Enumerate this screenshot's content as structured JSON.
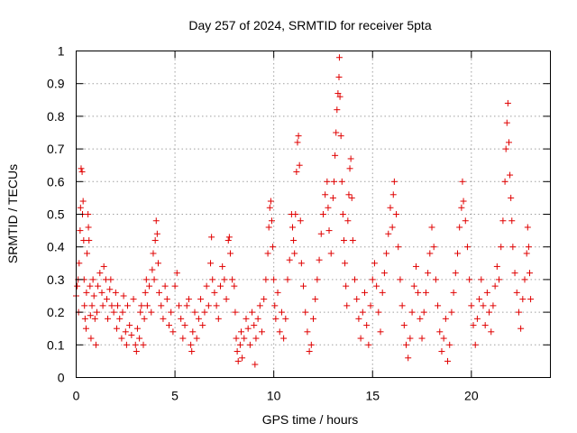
{
  "chart_data": {
    "type": "scatter",
    "title": "Day 257 of 2024, SRMTID for receiver 5pta",
    "xlabel": "GPS time / hours",
    "ylabel": "SRMTID / TECUs",
    "xlim": [
      0,
      24
    ],
    "ylim": [
      0,
      1
    ],
    "xticks": [
      0,
      5,
      10,
      15,
      20
    ],
    "yticks": [
      0,
      0.1,
      0.2,
      0.3,
      0.4,
      0.5,
      0.6,
      0.7,
      0.8,
      0.9,
      1
    ],
    "xtick_labels": [
      "0",
      "5",
      "10",
      "15",
      "20"
    ],
    "ytick_labels": [
      "0",
      "0.1",
      "0.2",
      "0.3",
      "0.4",
      "0.5",
      "0.6",
      "0.7",
      "0.8",
      "0.9",
      "1"
    ],
    "grid": true,
    "marker": "+",
    "color": "#e00000",
    "series": [
      {
        "name": "SRMTID",
        "points": [
          [
            0.0,
            0.25
          ],
          [
            0.05,
            0.28
          ],
          [
            0.1,
            0.3
          ],
          [
            0.12,
            0.2
          ],
          [
            0.15,
            0.35
          ],
          [
            0.2,
            0.45
          ],
          [
            0.22,
            0.52
          ],
          [
            0.25,
            0.64
          ],
          [
            0.3,
            0.63
          ],
          [
            0.32,
            0.5
          ],
          [
            0.35,
            0.54
          ],
          [
            0.38,
            0.42
          ],
          [
            0.4,
            0.3
          ],
          [
            0.42,
            0.22
          ],
          [
            0.45,
            0.18
          ],
          [
            0.5,
            0.15
          ],
          [
            0.52,
            0.26
          ],
          [
            0.55,
            0.38
          ],
          [
            0.6,
            0.5
          ],
          [
            0.62,
            0.46
          ],
          [
            0.65,
            0.42
          ],
          [
            0.7,
            0.28
          ],
          [
            0.72,
            0.19
          ],
          [
            0.75,
            0.12
          ],
          [
            0.8,
            0.22
          ],
          [
            0.85,
            0.3
          ],
          [
            0.9,
            0.25
          ],
          [
            0.95,
            0.18
          ],
          [
            1.0,
            0.1
          ],
          [
            1.05,
            0.2
          ],
          [
            1.1,
            0.28
          ],
          [
            1.2,
            0.32
          ],
          [
            1.3,
            0.26
          ],
          [
            1.35,
            0.22
          ],
          [
            1.4,
            0.34
          ],
          [
            1.5,
            0.3
          ],
          [
            1.55,
            0.24
          ],
          [
            1.6,
            0.18
          ],
          [
            1.7,
            0.27
          ],
          [
            1.75,
            0.3
          ],
          [
            1.8,
            0.22
          ],
          [
            1.9,
            0.2
          ],
          [
            2.0,
            0.26
          ],
          [
            2.05,
            0.15
          ],
          [
            2.1,
            0.22
          ],
          [
            2.2,
            0.18
          ],
          [
            2.3,
            0.12
          ],
          [
            2.35,
            0.2
          ],
          [
            2.4,
            0.25
          ],
          [
            2.5,
            0.14
          ],
          [
            2.55,
            0.1
          ],
          [
            2.6,
            0.22
          ],
          [
            2.7,
            0.16
          ],
          [
            2.8,
            0.13
          ],
          [
            2.9,
            0.24
          ],
          [
            3.0,
            0.1
          ],
          [
            3.05,
            0.08
          ],
          [
            3.1,
            0.15
          ],
          [
            3.2,
            0.12
          ],
          [
            3.25,
            0.2
          ],
          [
            3.3,
            0.22
          ],
          [
            3.4,
            0.1
          ],
          [
            3.45,
            0.18
          ],
          [
            3.5,
            0.26
          ],
          [
            3.55,
            0.3
          ],
          [
            3.6,
            0.22
          ],
          [
            3.7,
            0.28
          ],
          [
            3.8,
            0.2
          ],
          [
            3.85,
            0.33
          ],
          [
            3.9,
            0.38
          ],
          [
            3.95,
            0.3
          ],
          [
            4.0,
            0.42
          ],
          [
            4.05,
            0.48
          ],
          [
            4.1,
            0.44
          ],
          [
            4.15,
            0.35
          ],
          [
            4.2,
            0.26
          ],
          [
            4.3,
            0.22
          ],
          [
            4.4,
            0.18
          ],
          [
            4.5,
            0.28
          ],
          [
            4.6,
            0.24
          ],
          [
            4.7,
            0.16
          ],
          [
            4.8,
            0.2
          ],
          [
            4.9,
            0.14
          ],
          [
            5.0,
            0.28
          ],
          [
            5.1,
            0.32
          ],
          [
            5.2,
            0.22
          ],
          [
            5.3,
            0.18
          ],
          [
            5.4,
            0.12
          ],
          [
            5.5,
            0.16
          ],
          [
            5.6,
            0.22
          ],
          [
            5.7,
            0.24
          ],
          [
            5.8,
            0.1
          ],
          [
            5.85,
            0.08
          ],
          [
            5.9,
            0.14
          ],
          [
            6.0,
            0.2
          ],
          [
            6.1,
            0.12
          ],
          [
            6.2,
            0.18
          ],
          [
            6.3,
            0.24
          ],
          [
            6.4,
            0.16
          ],
          [
            6.5,
            0.2
          ],
          [
            6.6,
            0.28
          ],
          [
            6.7,
            0.22
          ],
          [
            6.8,
            0.35
          ],
          [
            6.85,
            0.43
          ],
          [
            6.9,
            0.3
          ],
          [
            7.0,
            0.26
          ],
          [
            7.1,
            0.22
          ],
          [
            7.2,
            0.18
          ],
          [
            7.3,
            0.28
          ],
          [
            7.4,
            0.34
          ],
          [
            7.5,
            0.3
          ],
          [
            7.6,
            0.24
          ],
          [
            7.7,
            0.42
          ],
          [
            7.75,
            0.43
          ],
          [
            7.8,
            0.38
          ],
          [
            7.9,
            0.3
          ],
          [
            8.0,
            0.28
          ],
          [
            8.05,
            0.2
          ],
          [
            8.1,
            0.12
          ],
          [
            8.15,
            0.08
          ],
          [
            8.2,
            0.05
          ],
          [
            8.3,
            0.1
          ],
          [
            8.35,
            0.14
          ],
          [
            8.4,
            0.06
          ],
          [
            8.5,
            0.12
          ],
          [
            8.6,
            0.18
          ],
          [
            8.7,
            0.15
          ],
          [
            8.8,
            0.1
          ],
          [
            8.9,
            0.2
          ],
          [
            9.0,
            0.16
          ],
          [
            9.05,
            0.04
          ],
          [
            9.1,
            0.12
          ],
          [
            9.2,
            0.18
          ],
          [
            9.3,
            0.22
          ],
          [
            9.4,
            0.14
          ],
          [
            9.5,
            0.24
          ],
          [
            9.6,
            0.3
          ],
          [
            9.7,
            0.38
          ],
          [
            9.75,
            0.46
          ],
          [
            9.8,
            0.52
          ],
          [
            9.85,
            0.54
          ],
          [
            9.9,
            0.48
          ],
          [
            9.95,
            0.4
          ],
          [
            10.0,
            0.3
          ],
          [
            10.05,
            0.22
          ],
          [
            10.1,
            0.18
          ],
          [
            10.2,
            0.26
          ],
          [
            10.3,
            0.14
          ],
          [
            10.4,
            0.2
          ],
          [
            10.5,
            0.12
          ],
          [
            10.6,
            0.18
          ],
          [
            10.7,
            0.3
          ],
          [
            10.8,
            0.36
          ],
          [
            10.9,
            0.5
          ],
          [
            10.95,
            0.46
          ],
          [
            11.0,
            0.42
          ],
          [
            11.05,
            0.38
          ],
          [
            11.1,
            0.5
          ],
          [
            11.15,
            0.63
          ],
          [
            11.2,
            0.72
          ],
          [
            11.25,
            0.74
          ],
          [
            11.3,
            0.65
          ],
          [
            11.35,
            0.48
          ],
          [
            11.4,
            0.35
          ],
          [
            11.5,
            0.28
          ],
          [
            11.6,
            0.2
          ],
          [
            11.7,
            0.14
          ],
          [
            11.8,
            0.08
          ],
          [
            11.9,
            0.1
          ],
          [
            12.0,
            0.18
          ],
          [
            12.1,
            0.24
          ],
          [
            12.2,
            0.3
          ],
          [
            12.3,
            0.36
          ],
          [
            12.4,
            0.44
          ],
          [
            12.5,
            0.5
          ],
          [
            12.6,
            0.56
          ],
          [
            12.7,
            0.6
          ],
          [
            12.75,
            0.52
          ],
          [
            12.8,
            0.45
          ],
          [
            12.9,
            0.38
          ],
          [
            13.0,
            0.55
          ],
          [
            13.05,
            0.6
          ],
          [
            13.1,
            0.68
          ],
          [
            13.15,
            0.75
          ],
          [
            13.2,
            0.82
          ],
          [
            13.25,
            0.87
          ],
          [
            13.3,
            0.92
          ],
          [
            13.32,
            0.98
          ],
          [
            13.35,
            0.86
          ],
          [
            13.4,
            0.74
          ],
          [
            13.45,
            0.6
          ],
          [
            13.5,
            0.5
          ],
          [
            13.55,
            0.42
          ],
          [
            13.6,
            0.35
          ],
          [
            13.65,
            0.28
          ],
          [
            13.7,
            0.22
          ],
          [
            13.75,
            0.48
          ],
          [
            13.8,
            0.56
          ],
          [
            13.85,
            0.64
          ],
          [
            13.9,
            0.67
          ],
          [
            13.95,
            0.55
          ],
          [
            14.0,
            0.42
          ],
          [
            14.1,
            0.3
          ],
          [
            14.2,
            0.24
          ],
          [
            14.3,
            0.18
          ],
          [
            14.4,
            0.12
          ],
          [
            14.5,
            0.2
          ],
          [
            14.6,
            0.26
          ],
          [
            14.7,
            0.16
          ],
          [
            14.8,
            0.1
          ],
          [
            14.9,
            0.22
          ],
          [
            15.0,
            0.3
          ],
          [
            15.1,
            0.35
          ],
          [
            15.2,
            0.28
          ],
          [
            15.3,
            0.2
          ],
          [
            15.4,
            0.14
          ],
          [
            15.5,
            0.26
          ],
          [
            15.6,
            0.32
          ],
          [
            15.7,
            0.38
          ],
          [
            15.8,
            0.44
          ],
          [
            15.9,
            0.52
          ],
          [
            16.0,
            0.46
          ],
          [
            16.05,
            0.56
          ],
          [
            16.1,
            0.6
          ],
          [
            16.2,
            0.5
          ],
          [
            16.3,
            0.4
          ],
          [
            16.4,
            0.3
          ],
          [
            16.5,
            0.22
          ],
          [
            16.6,
            0.16
          ],
          [
            16.7,
            0.1
          ],
          [
            16.8,
            0.06
          ],
          [
            16.9,
            0.12
          ],
          [
            17.0,
            0.2
          ],
          [
            17.1,
            0.28
          ],
          [
            17.2,
            0.34
          ],
          [
            17.3,
            0.26
          ],
          [
            17.4,
            0.18
          ],
          [
            17.5,
            0.12
          ],
          [
            17.6,
            0.2
          ],
          [
            17.7,
            0.26
          ],
          [
            17.8,
            0.32
          ],
          [
            17.9,
            0.38
          ],
          [
            18.0,
            0.46
          ],
          [
            18.1,
            0.4
          ],
          [
            18.2,
            0.3
          ],
          [
            18.3,
            0.22
          ],
          [
            18.4,
            0.14
          ],
          [
            18.5,
            0.08
          ],
          [
            18.6,
            0.12
          ],
          [
            18.7,
            0.18
          ],
          [
            18.8,
            0.05
          ],
          [
            18.9,
            0.1
          ],
          [
            19.0,
            0.2
          ],
          [
            19.1,
            0.26
          ],
          [
            19.2,
            0.32
          ],
          [
            19.3,
            0.38
          ],
          [
            19.4,
            0.46
          ],
          [
            19.5,
            0.52
          ],
          [
            19.55,
            0.6
          ],
          [
            19.6,
            0.54
          ],
          [
            19.7,
            0.48
          ],
          [
            19.8,
            0.4
          ],
          [
            19.9,
            0.3
          ],
          [
            20.0,
            0.22
          ],
          [
            20.1,
            0.16
          ],
          [
            20.2,
            0.1
          ],
          [
            20.3,
            0.18
          ],
          [
            20.4,
            0.24
          ],
          [
            20.5,
            0.3
          ],
          [
            20.6,
            0.22
          ],
          [
            20.7,
            0.16
          ],
          [
            20.8,
            0.26
          ],
          [
            20.9,
            0.2
          ],
          [
            21.0,
            0.14
          ],
          [
            21.1,
            0.22
          ],
          [
            21.2,
            0.28
          ],
          [
            21.3,
            0.34
          ],
          [
            21.4,
            0.3
          ],
          [
            21.5,
            0.4
          ],
          [
            21.6,
            0.48
          ],
          [
            21.7,
            0.6
          ],
          [
            21.75,
            0.7
          ],
          [
            21.8,
            0.78
          ],
          [
            21.85,
            0.84
          ],
          [
            21.9,
            0.72
          ],
          [
            21.95,
            0.62
          ],
          [
            22.0,
            0.55
          ],
          [
            22.05,
            0.48
          ],
          [
            22.1,
            0.4
          ],
          [
            22.2,
            0.32
          ],
          [
            22.3,
            0.26
          ],
          [
            22.4,
            0.2
          ],
          [
            22.5,
            0.15
          ],
          [
            22.6,
            0.24
          ],
          [
            22.7,
            0.3
          ],
          [
            22.8,
            0.38
          ],
          [
            22.85,
            0.46
          ],
          [
            22.9,
            0.4
          ],
          [
            22.95,
            0.32
          ],
          [
            23.0,
            0.24
          ]
        ]
      }
    ]
  }
}
